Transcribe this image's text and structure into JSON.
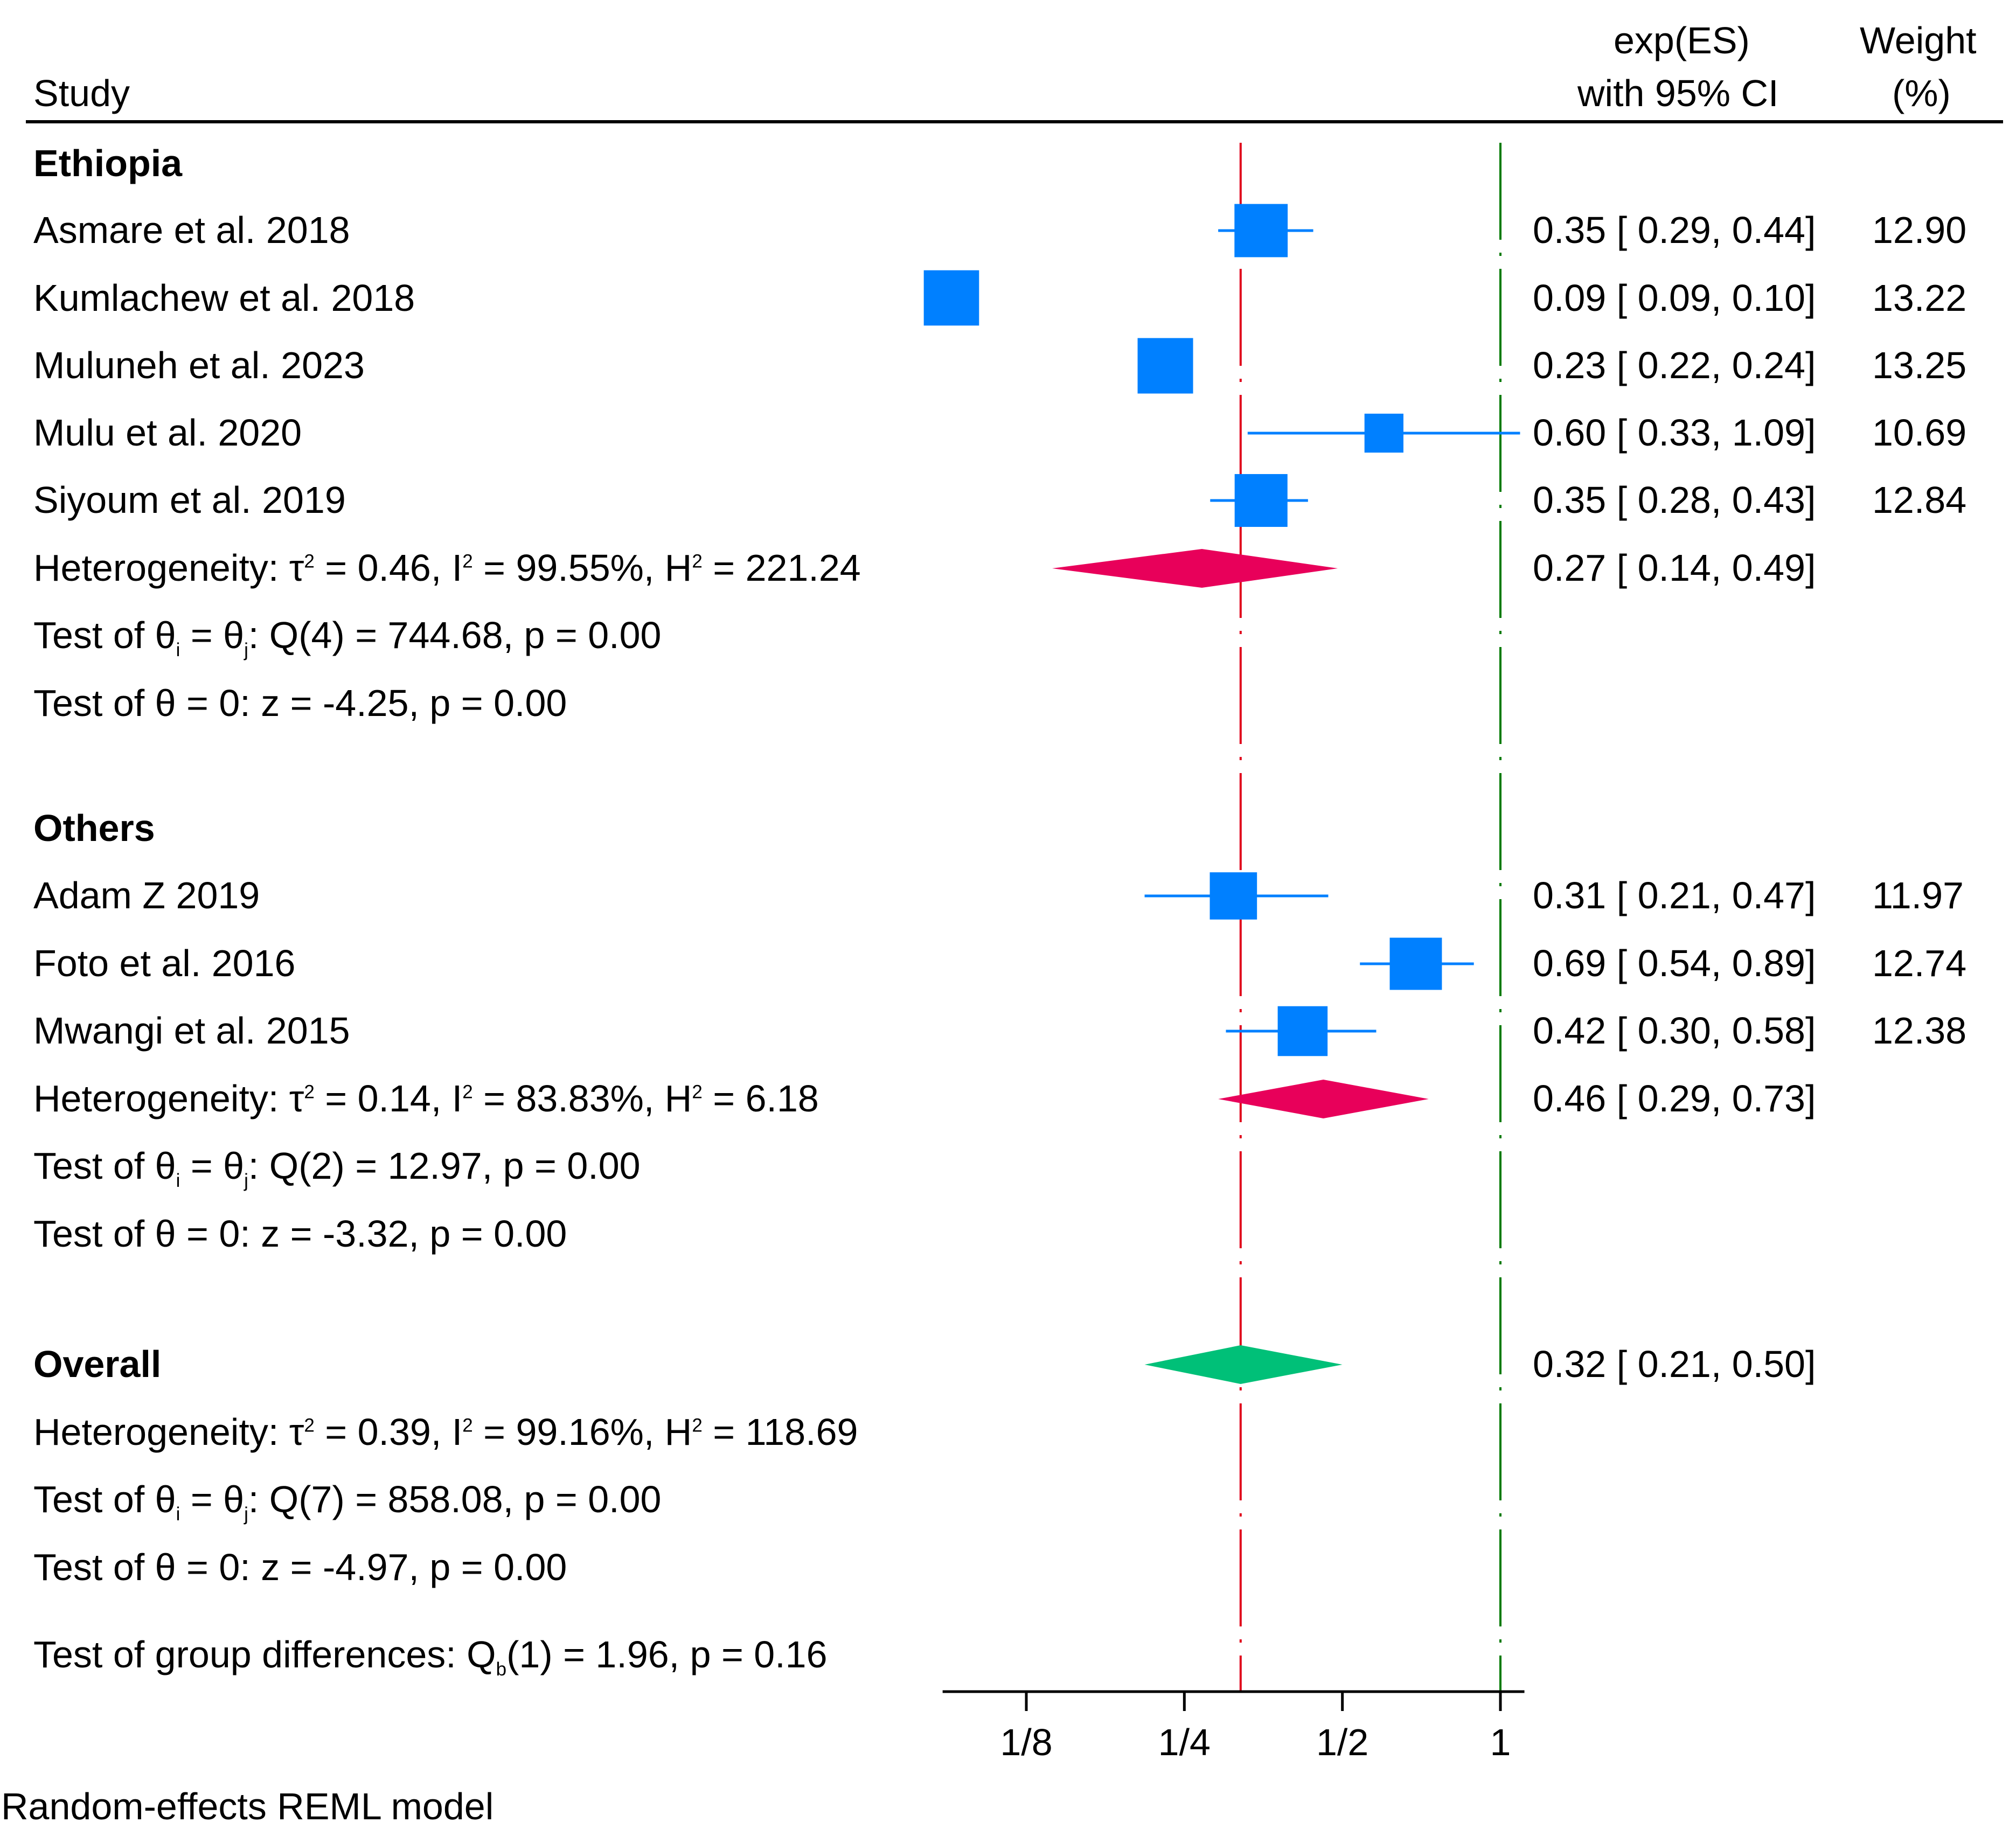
{
  "header": {
    "study": "Study",
    "es_line1": "exp(ES)",
    "es_line2": "with 95% CI",
    "weight_line1": "Weight",
    "weight_line2": "(%)"
  },
  "chart_data": {
    "type": "forest",
    "x_scale": "log",
    "x_ticks": [
      {
        "value": 0.125,
        "label": "1/8"
      },
      {
        "value": 0.25,
        "label": "1/4"
      },
      {
        "value": 0.5,
        "label": "1/2"
      },
      {
        "value": 1,
        "label": "1"
      }
    ],
    "xlim": [
      0.087,
      1.035
    ],
    "reference_line": {
      "value": 1,
      "color": "#007a00",
      "style": "dash-dot"
    },
    "overall_line": {
      "value": 0.32,
      "color": "#e0001b",
      "style": "dash-dot"
    },
    "groups": [
      {
        "name": "Ethiopia",
        "studies": [
          {
            "label": "Asmare et al. 2018",
            "es": 0.35,
            "lo": 0.29,
            "hi": 0.44,
            "ci_text": "0.35 [ 0.29,  0.44]",
            "weight": "12.90"
          },
          {
            "label": "Kumlachew et al. 2018",
            "es": 0.09,
            "lo": 0.09,
            "hi": 0.1,
            "ci_text": "0.09 [ 0.09,  0.10]",
            "weight": "13.22"
          },
          {
            "label": "Muluneh et al. 2023",
            "es": 0.23,
            "lo": 0.22,
            "hi": 0.24,
            "ci_text": "0.23 [ 0.22,  0.24]",
            "weight": "13.25"
          },
          {
            "label": "Mulu et al. 2020",
            "es": 0.6,
            "lo": 0.33,
            "hi": 1.09,
            "ci_text": "0.60 [ 0.33,  1.09]",
            "weight": "10.69"
          },
          {
            "label": "Siyoum et al. 2019",
            "es": 0.35,
            "lo": 0.28,
            "hi": 0.43,
            "ci_text": "0.35 [ 0.28,  0.43]",
            "weight": "12.84"
          }
        ],
        "pooled": {
          "es": 0.27,
          "lo": 0.14,
          "hi": 0.49,
          "ci_text": "0.27 [ 0.14,  0.49]",
          "color": "#e8005a"
        },
        "heterogeneity": {
          "prefix": "Heterogeneity: τ",
          "t2": " = 0.46, I",
          "i2": " = 99.55%, H",
          "h2": " = 221.24"
        },
        "test_ij": {
          "prefix": "Test of θ",
          "mid": " = θ",
          "suffix": ": Q(4) = 744.68, p = 0.00"
        },
        "test_zero": "Test of θ = 0: z = -4.25, p = 0.00"
      },
      {
        "name": "Others",
        "studies": [
          {
            "label": "Adam Z 2019",
            "es": 0.31,
            "lo": 0.21,
            "hi": 0.47,
            "ci_text": "0.31 [ 0.21,  0.47]",
            "weight": "11.97"
          },
          {
            "label": "Foto et al. 2016",
            "es": 0.69,
            "lo": 0.54,
            "hi": 0.89,
            "ci_text": "0.69 [ 0.54,  0.89]",
            "weight": "12.74"
          },
          {
            "label": "Mwangi et al. 2015",
            "es": 0.42,
            "lo": 0.3,
            "hi": 0.58,
            "ci_text": "0.42 [ 0.30,  0.58]",
            "weight": "12.38"
          }
        ],
        "pooled": {
          "es": 0.46,
          "lo": 0.29,
          "hi": 0.73,
          "ci_text": "0.46 [ 0.29,  0.73]",
          "color": "#e8005a"
        },
        "heterogeneity": {
          "prefix": "Heterogeneity: τ",
          "t2": " = 0.14, I",
          "i2": " = 83.83%, H",
          "h2": " = 6.18"
        },
        "test_ij": {
          "prefix": "Test of θ",
          "mid": " = θ",
          "suffix": ": Q(2) = 12.97, p = 0.00"
        },
        "test_zero": "Test of θ = 0: z = -3.32, p = 0.00"
      }
    ],
    "overall": {
      "name": "Overall",
      "es": 0.32,
      "lo": 0.21,
      "hi": 0.5,
      "ci_text": "0.32 [ 0.21,  0.50]",
      "color": "#00c078",
      "heterogeneity": {
        "prefix": "Heterogeneity: τ",
        "t2": " = 0.39, I",
        "i2": " = 99.16%, H",
        "h2": " = 118.69"
      },
      "test_ij": {
        "prefix": "Test of θ",
        "mid": " = θ",
        "suffix": ": Q(7) = 858.08, p = 0.00"
      },
      "test_zero": "Test of θ = 0: z = -4.97, p = 0.00"
    },
    "group_test": {
      "prefix": "Test of group differences: Q",
      "sub": "b",
      "suffix": "(1) = 1.96, p = 0.16"
    },
    "marker_color": "#0080ff"
  },
  "footnote": "Random-effects REML model",
  "superscripts": {
    "two": "2"
  },
  "subscripts": {
    "i": "i",
    "j": "j"
  }
}
